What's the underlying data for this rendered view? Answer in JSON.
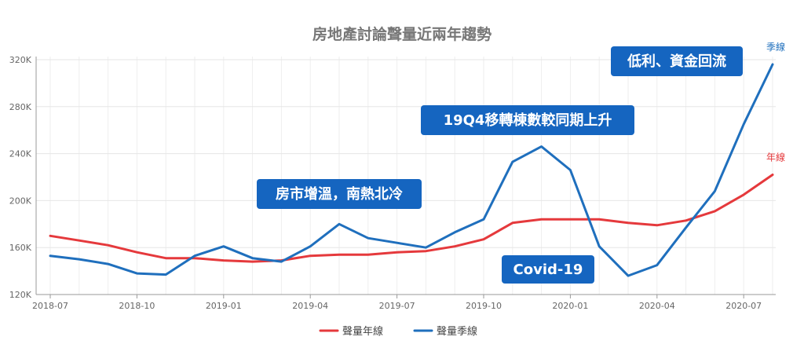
{
  "chart_data": {
    "type": "line",
    "title": "房地產討論聲量近兩年趨勢",
    "xlabel": "",
    "ylabel": "",
    "ylim": [
      120000,
      320000
    ],
    "y_ticks": [
      {
        "value": 120000,
        "label": "120K"
      },
      {
        "value": 160000,
        "label": "160K"
      },
      {
        "value": 200000,
        "label": "200K"
      },
      {
        "value": 240000,
        "label": "240K"
      },
      {
        "value": 280000,
        "label": "280K"
      },
      {
        "value": 320000,
        "label": "320K"
      }
    ],
    "x_ticks": [
      {
        "index": 0,
        "label": "2018-07"
      },
      {
        "index": 3,
        "label": "2018-10"
      },
      {
        "index": 6,
        "label": "2019-01"
      },
      {
        "index": 9,
        "label": "2019-04"
      },
      {
        "index": 12,
        "label": "2019-07"
      },
      {
        "index": 15,
        "label": "2019-10"
      },
      {
        "index": 18,
        "label": "2020-01"
      },
      {
        "index": 21,
        "label": "2020-04"
      },
      {
        "index": 24,
        "label": "2020-07"
      }
    ],
    "x": [
      "2018-07",
      "2018-08",
      "2018-09",
      "2018-10",
      "2018-11",
      "2018-12",
      "2019-01",
      "2019-02",
      "2019-03",
      "2019-04",
      "2019-05",
      "2019-06",
      "2019-07",
      "2019-08",
      "2019-09",
      "2019-10",
      "2019-11",
      "2019-12",
      "2020-01",
      "2020-02",
      "2020-03",
      "2020-04",
      "2020-05",
      "2020-06",
      "2020-07",
      "2020-08"
    ],
    "series": [
      {
        "name": "聲量年線",
        "color": "#e5393c",
        "end_label": "年線",
        "values": [
          170000,
          166000,
          162000,
          156000,
          151000,
          151000,
          149000,
          148000,
          149000,
          153000,
          154000,
          154000,
          156000,
          157000,
          161000,
          167000,
          181000,
          184000,
          184000,
          184000,
          181000,
          179000,
          183000,
          191000,
          205000,
          222000
        ]
      },
      {
        "name": "聲量季線",
        "color": "#1f6fbd",
        "end_label": "季線",
        "values": [
          153000,
          150000,
          146000,
          138000,
          137000,
          153000,
          161000,
          151000,
          148000,
          161000,
          180000,
          168000,
          164000,
          160000,
          173000,
          184000,
          233000,
          246000,
          226000,
          161000,
          136000,
          145000,
          177000,
          208000,
          265000,
          316000
        ]
      }
    ],
    "grid": true,
    "legend_position": "bottom-center",
    "annotations": [
      {
        "id": "market-warm",
        "text": "房市增溫，南熱北冷",
        "bg": "#1565c0"
      },
      {
        "id": "q4-transfer",
        "text": "19Q4移轉棟數較同期上升",
        "bg": "#1565c0"
      },
      {
        "id": "covid",
        "text": "Covid-19",
        "bg": "#1565c0"
      },
      {
        "id": "low-rate",
        "text": "低利、資金回流",
        "bg": "#1565c0"
      }
    ]
  }
}
